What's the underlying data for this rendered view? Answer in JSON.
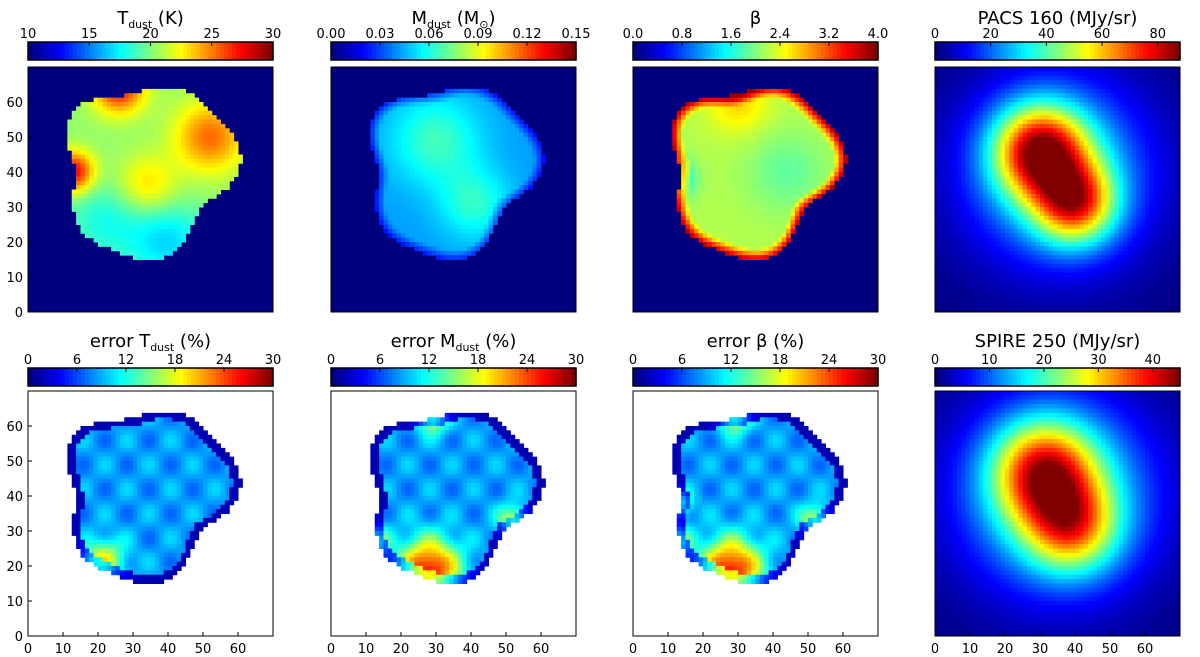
{
  "chart_data": [
    {
      "type": "heatmap",
      "title": "T_dust (K)",
      "title_main": "T",
      "title_sub": "dust",
      "title_rest": " (K)",
      "colorbar_ticks": [
        "10",
        "15",
        "20",
        "25",
        "30"
      ],
      "colorbar_range": [
        10,
        30
      ],
      "xlim": [
        0,
        70
      ],
      "ylim": [
        0,
        70
      ],
      "yticks": [
        "0",
        "10",
        "20",
        "30",
        "40",
        "50",
        "60"
      ],
      "xticks": [],
      "background": "#00007f",
      "map": {
        "kind": "tdust"
      }
    },
    {
      "type": "heatmap",
      "title": "M_dust (M_sun)",
      "title_main": "M",
      "title_sub": "dust",
      "title_rest": " (M",
      "title_sub2": "⊙",
      "title_end": ")",
      "colorbar_ticks": [
        "0.00",
        "0.03",
        "0.06",
        "0.09",
        "0.12",
        "0.15"
      ],
      "colorbar_range": [
        0,
        0.15
      ],
      "xlim": [
        0,
        70
      ],
      "ylim": [
        0,
        70
      ],
      "yticks": [],
      "xticks": [],
      "background": "#00007f",
      "map": {
        "kind": "mdust"
      }
    },
    {
      "type": "heatmap",
      "title": "β",
      "title_main": "β",
      "colorbar_ticks": [
        "0.0",
        "0.8",
        "1.6",
        "2.4",
        "3.2",
        "4.0"
      ],
      "colorbar_range": [
        0,
        4
      ],
      "xlim": [
        0,
        70
      ],
      "ylim": [
        0,
        70
      ],
      "yticks": [],
      "xticks": [],
      "background": "#00007f",
      "map": {
        "kind": "beta"
      }
    },
    {
      "type": "heatmap",
      "title": "PACS 160 (MJy/sr)",
      "title_main": "PACS 160 (MJy/sr)",
      "colorbar_ticks": [
        "0",
        "20",
        "40",
        "60",
        "80"
      ],
      "colorbar_range": [
        0,
        88
      ],
      "xlim": [
        0,
        70
      ],
      "ylim": [
        0,
        70
      ],
      "yticks": [],
      "xticks": [],
      "background": "#00007f",
      "map": {
        "kind": "pacs"
      }
    },
    {
      "type": "heatmap",
      "title": "error T_dust (%)",
      "title_main": "error T",
      "title_sub": "dust",
      "title_rest": " (%)",
      "colorbar_ticks": [
        "0",
        "6",
        "12",
        "18",
        "24",
        "30"
      ],
      "colorbar_range": [
        0,
        30
      ],
      "xlim": [
        0,
        70
      ],
      "ylim": [
        0,
        70
      ],
      "yticks": [
        "0",
        "10",
        "20",
        "30",
        "40",
        "50",
        "60"
      ],
      "xticks": [
        "0",
        "10",
        "20",
        "30",
        "40",
        "50",
        "60"
      ],
      "background": "#ffffff",
      "map": {
        "kind": "err_t"
      }
    },
    {
      "type": "heatmap",
      "title": "error M_dust (%)",
      "title_main": "error M",
      "title_sub": "dust",
      "title_rest": " (%)",
      "colorbar_ticks": [
        "0",
        "6",
        "12",
        "18",
        "24",
        "30"
      ],
      "colorbar_range": [
        0,
        30
      ],
      "xlim": [
        0,
        70
      ],
      "ylim": [
        0,
        70
      ],
      "yticks": [],
      "xticks": [
        "0",
        "10",
        "20",
        "30",
        "40",
        "50",
        "60"
      ],
      "background": "#ffffff",
      "map": {
        "kind": "err_m"
      }
    },
    {
      "type": "heatmap",
      "title": "error β (%)",
      "title_main": "error β (%)",
      "colorbar_ticks": [
        "0",
        "6",
        "12",
        "18",
        "24",
        "30"
      ],
      "colorbar_range": [
        0,
        30
      ],
      "xlim": [
        0,
        70
      ],
      "ylim": [
        0,
        70
      ],
      "yticks": [],
      "xticks": [
        "0",
        "10",
        "20",
        "30",
        "40",
        "50",
        "60"
      ],
      "background": "#ffffff",
      "map": {
        "kind": "err_b"
      }
    },
    {
      "type": "heatmap",
      "title": "SPIRE 250 (MJy/sr)",
      "title_main": "SPIRE 250 (MJy/sr)",
      "colorbar_ticks": [
        "0",
        "10",
        "20",
        "30",
        "40"
      ],
      "colorbar_range": [
        0,
        45
      ],
      "xlim": [
        0,
        70
      ],
      "ylim": [
        0,
        70
      ],
      "yticks": [],
      "xticks": [
        "0",
        "10",
        "20",
        "30",
        "40",
        "50",
        "60"
      ],
      "background": "#00007f",
      "map": {
        "kind": "spire"
      }
    }
  ]
}
